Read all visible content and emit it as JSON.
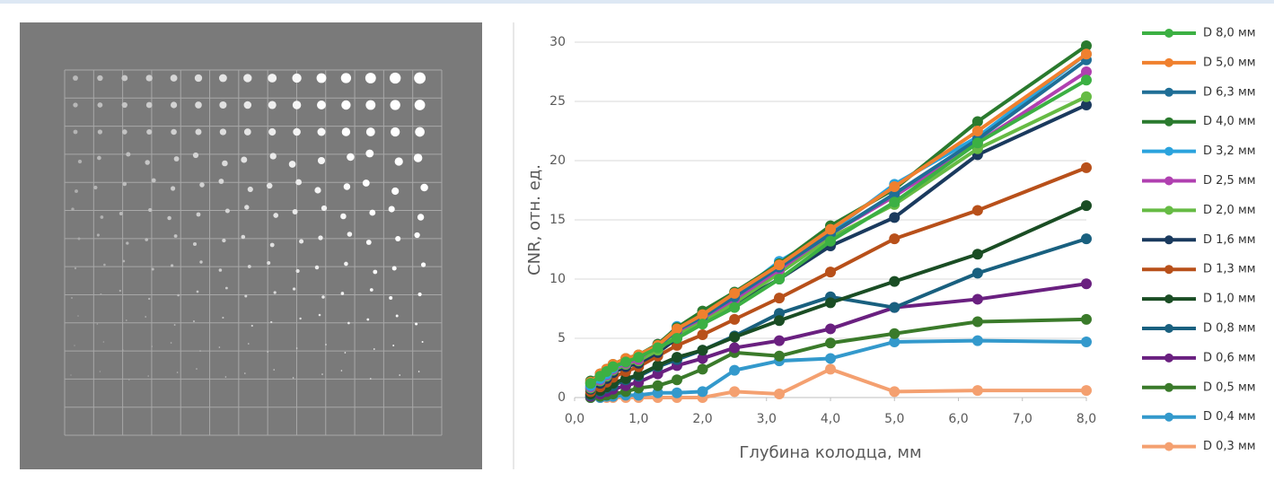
{
  "chart_data": {
    "type": "line",
    "x_label": "Глубина колодца, мм",
    "y_label": "CNR, отн. ед.",
    "x": [
      0.25,
      0.4,
      0.5,
      0.6,
      0.8,
      1.0,
      1.3,
      1.6,
      2.0,
      2.5,
      3.2,
      4.0,
      5.0,
      6.3,
      8.0
    ],
    "xlim": [
      0,
      8
    ],
    "xticks": [
      {
        "value": 0,
        "label": "0,0"
      },
      {
        "value": 1,
        "label": "1,0"
      },
      {
        "value": 2,
        "label": "2,0"
      },
      {
        "value": 3,
        "label": "3,0"
      },
      {
        "value": 4,
        "label": "4,0"
      },
      {
        "value": 5,
        "label": "5,0"
      },
      {
        "value": 6,
        "label": "6,0"
      },
      {
        "value": 7,
        "label": "7,0"
      },
      {
        "value": 8,
        "label": "8,0"
      }
    ],
    "ylim": [
      0,
      30
    ],
    "yticks": [
      0,
      5,
      10,
      15,
      20,
      25,
      30
    ],
    "grid": true,
    "legend": "right",
    "series": [
      {
        "name": "D 8,0 мм",
        "color": "#3cb043",
        "values": [
          1.2,
          1.8,
          2.2,
          2.6,
          3.0,
          3.4,
          4.2,
          5.0,
          6.2,
          7.6,
          10.0,
          13.2,
          16.5,
          21.5,
          26.8
        ]
      },
      {
        "name": "D 5,0 мм",
        "color": "#f0802e",
        "values": [
          1.3,
          2.0,
          2.4,
          2.8,
          3.3,
          3.6,
          4.4,
          5.8,
          7.0,
          8.8,
          11.2,
          14.2,
          17.8,
          22.5,
          29.0
        ]
      },
      {
        "name": "D 6,3 мм",
        "color": "#1f6e96",
        "values": [
          1.2,
          1.9,
          2.3,
          2.7,
          3.2,
          3.5,
          4.3,
          5.7,
          6.8,
          8.5,
          11.0,
          13.8,
          17.2,
          21.8,
          28.5
        ]
      },
      {
        "name": "D 4,0 мм",
        "color": "#2a7a2e",
        "values": [
          1.4,
          2.0,
          2.4,
          2.8,
          3.3,
          3.6,
          4.5,
          5.9,
          7.3,
          8.9,
          11.3,
          14.5,
          17.6,
          23.3,
          29.7
        ]
      },
      {
        "name": "D 3,2 мм",
        "color": "#2aa3dd",
        "values": [
          1.0,
          1.6,
          2.0,
          2.5,
          3.0,
          3.4,
          4.3,
          6.0,
          6.8,
          8.6,
          11.5,
          14.0,
          18.0,
          22.0,
          29.0
        ]
      },
      {
        "name": "D 2,5 мм",
        "color": "#b040b0",
        "values": [
          0.9,
          1.5,
          1.9,
          2.4,
          2.9,
          3.2,
          4.5,
          5.6,
          6.7,
          8.3,
          10.8,
          13.8,
          17.0,
          21.5,
          27.5
        ]
      },
      {
        "name": "D 2,0 мм",
        "color": "#66bb44",
        "values": [
          0.8,
          1.4,
          1.8,
          2.3,
          2.8,
          3.1,
          4.0,
          5.3,
          6.4,
          8.0,
          10.5,
          13.5,
          16.3,
          21.0,
          25.4
        ]
      },
      {
        "name": "D 1,6 мм",
        "color": "#1a3a5e",
        "values": [
          0.7,
          1.2,
          1.6,
          2.1,
          2.6,
          2.9,
          3.8,
          5.0,
          6.3,
          7.9,
          10.0,
          12.8,
          15.2,
          20.5,
          24.7
        ]
      },
      {
        "name": "D 1,3 мм",
        "color": "#b8501a",
        "values": [
          0.5,
          0.9,
          1.3,
          1.7,
          2.2,
          2.6,
          3.5,
          4.4,
          5.3,
          6.6,
          8.4,
          10.6,
          13.4,
          15.8,
          19.4
        ]
      },
      {
        "name": "D 1,0 мм",
        "color": "#1a4d24",
        "values": [
          0.3,
          0.6,
          0.9,
          1.2,
          1.6,
          1.9,
          2.7,
          3.4,
          4.0,
          5.1,
          6.5,
          8.0,
          9.8,
          12.1,
          16.2
        ]
      },
      {
        "name": "D 0,8 мм",
        "color": "#19607f",
        "values": [
          0.2,
          0.5,
          0.8,
          1.0,
          1.5,
          1.8,
          2.6,
          3.2,
          4.0,
          5.2,
          7.1,
          8.5,
          7.6,
          10.5,
          13.4
        ]
      },
      {
        "name": "D 0,6 мм",
        "color": "#6a2080",
        "values": [
          0.1,
          0.3,
          0.5,
          0.7,
          1.0,
          1.3,
          2.0,
          2.7,
          3.3,
          4.2,
          4.8,
          5.8,
          7.6,
          8.3,
          9.6
        ]
      },
      {
        "name": "D 0,5 мм",
        "color": "#3a7a2a",
        "values": [
          0.0,
          0.1,
          0.2,
          0.3,
          0.5,
          0.8,
          1.0,
          1.5,
          2.4,
          3.8,
          3.5,
          4.6,
          5.4,
          6.4,
          6.6
        ]
      },
      {
        "name": "D 0,4 мм",
        "color": "#3399cc",
        "values": [
          0,
          0,
          0.1,
          0.1,
          0.2,
          0.2,
          0.4,
          0.4,
          0.5,
          2.3,
          3.1,
          3.3,
          4.7,
          4.8,
          4.7
        ]
      },
      {
        "name": "D 0,3 мм",
        "color": "#f4a070",
        "values": [
          0,
          0,
          0,
          0,
          0,
          0,
          0,
          0,
          0,
          0.5,
          0.3,
          2.4,
          0.5,
          0.6,
          0.6
        ]
      }
    ]
  }
}
